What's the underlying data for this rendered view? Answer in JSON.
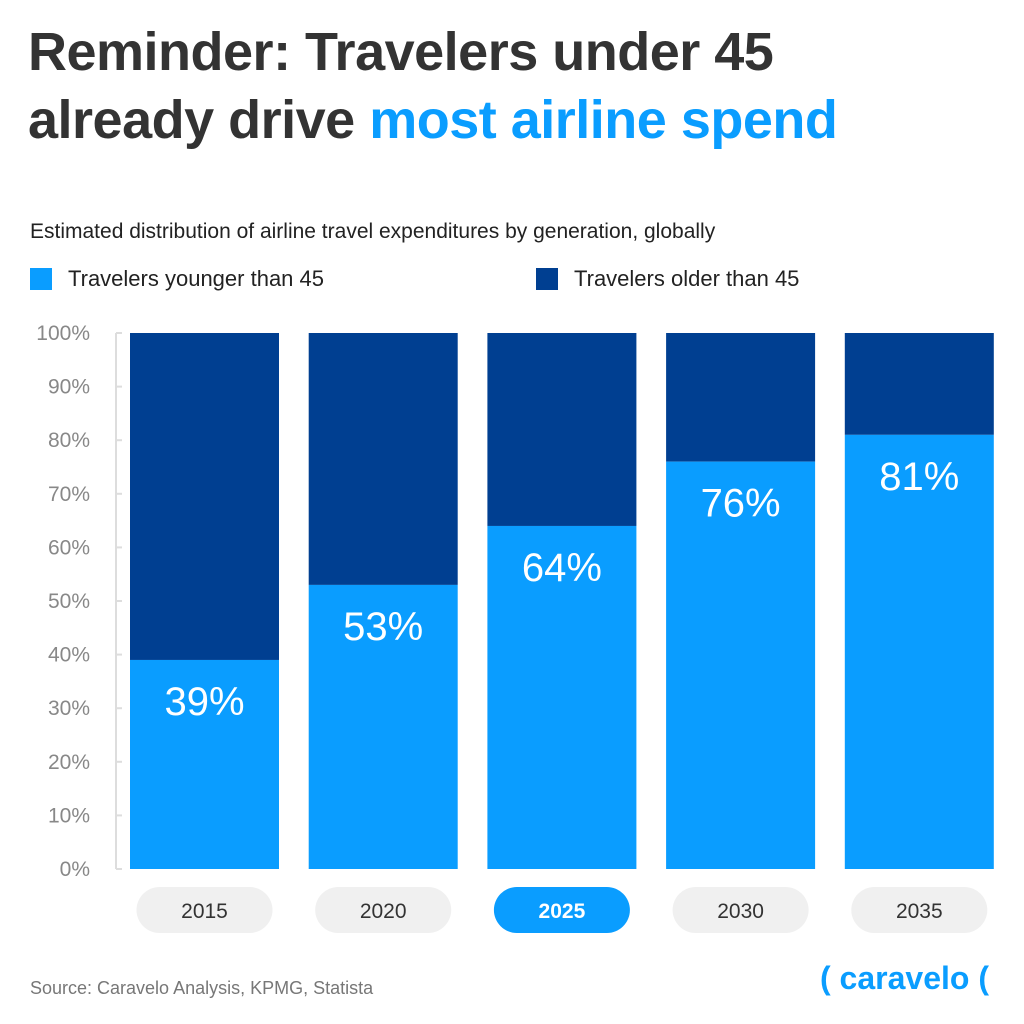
{
  "title": {
    "part1": "Reminder: Travelers under 45",
    "part2": "already drive ",
    "highlight": "most airline spend"
  },
  "chart_data": {
    "type": "bar",
    "stacked": true,
    "subtitle": "Estimated distribution of airline travel expenditures by generation, globally",
    "categories": [
      "2015",
      "2020",
      "2025",
      "2030",
      "2035"
    ],
    "highlighted_category": "2025",
    "series": [
      {
        "name": "Travelers younger than 45",
        "values": [
          39,
          53,
          64,
          76,
          81
        ],
        "color": "#0a9dff"
      },
      {
        "name": "Travelers older than 45",
        "values": [
          61,
          47,
          36,
          24,
          19
        ],
        "color": "#003f91"
      }
    ],
    "data_labels": [
      "39%",
      "53%",
      "64%",
      "76%",
      "81%"
    ],
    "yticks": [
      "0%",
      "10%",
      "20%",
      "30%",
      "40%",
      "50%",
      "60%",
      "70%",
      "80%",
      "90%",
      "100%"
    ],
    "ylim": [
      0,
      100
    ],
    "legend": "top-left"
  },
  "source": "Source: Caravelo Analysis, KPMG, Statista",
  "logo": "( caravelo ("
}
